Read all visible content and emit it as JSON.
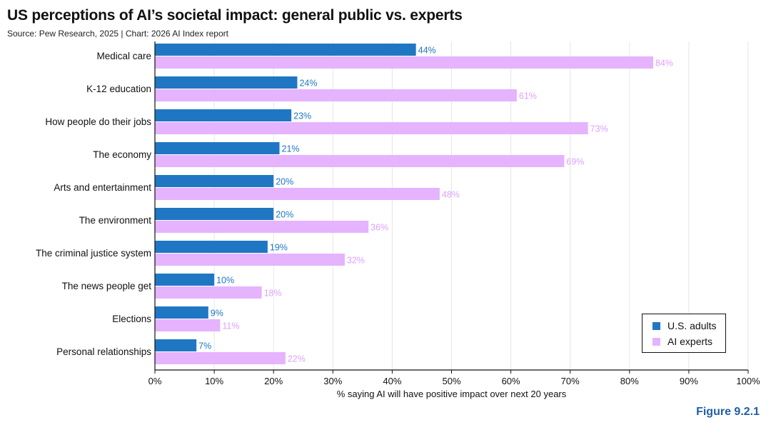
{
  "colors": {
    "us_adults": "#1f77c4",
    "ai_experts": "#e6b3ff",
    "us_label": "#1f77c4",
    "experts_label": "#dfa0ff",
    "figure_label": "#1f5fa6"
  },
  "header": {
    "title": "US perceptions of AI’s societal impact: general public vs. experts",
    "subtitle": "Source: Pew Research, 2025 | Chart: 2026 AI Index report"
  },
  "footer": {
    "figure_label": "Figure 9.2.1"
  },
  "chart_data": {
    "type": "bar",
    "orientation": "horizontal",
    "title": "US perceptions of AI’s societal impact: general public vs. experts",
    "subtitle": "Source: Pew Research, 2025 | Chart: 2026 AI Index report",
    "xlabel": "% saying AI will have positive impact over next 20 years",
    "ylabel": "",
    "xlim": [
      0,
      100
    ],
    "x_ticks": [
      "0%",
      "10%",
      "20%",
      "30%",
      "40%",
      "50%",
      "60%",
      "70%",
      "80%",
      "90%",
      "100%"
    ],
    "grid": "vertical",
    "legend_position": "bottom-right",
    "categories": [
      "Medical care",
      "K-12 education",
      "How people do their jobs",
      "The economy",
      "Arts and entertainment",
      "The environment",
      "The criminal justice system",
      "The news people get",
      "Elections",
      "Personal relationships"
    ],
    "series": [
      {
        "name": "U.S. adults",
        "values": [
          44,
          24,
          23,
          21,
          20,
          20,
          19,
          10,
          9,
          7
        ]
      },
      {
        "name": "AI experts",
        "values": [
          84,
          61,
          73,
          69,
          48,
          36,
          32,
          18,
          11,
          22
        ]
      }
    ]
  }
}
